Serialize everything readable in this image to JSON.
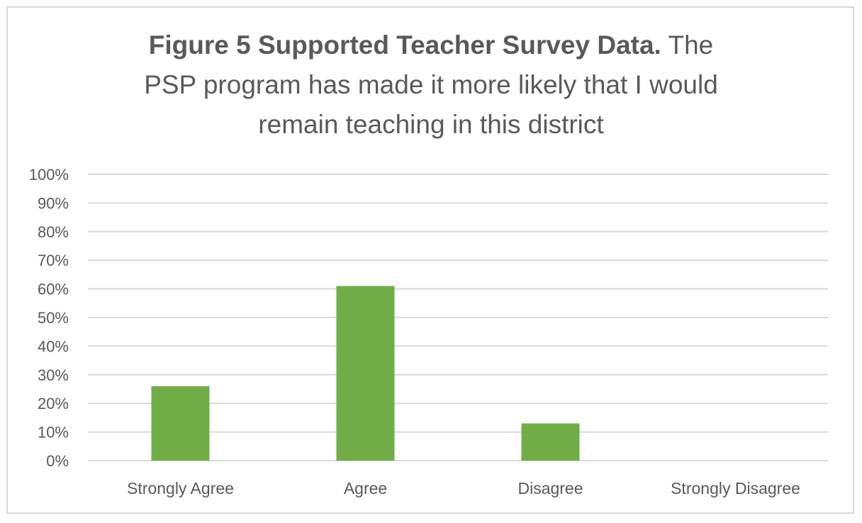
{
  "chart_data": {
    "type": "bar",
    "title_bold": "Figure 5 Supported Teacher Survey Data.",
    "title_line1_rest": "The",
    "title_line2": "PSP program has made it more likely that I would",
    "title_line3": "remain teaching in this district",
    "xlabel": "",
    "ylabel": "",
    "categories": [
      "Strongly Agree",
      "Agree",
      "Disagree",
      "Strongly Disagree"
    ],
    "values": [
      26,
      61,
      13,
      0
    ],
    "ylim": [
      0,
      100
    ],
    "yticks": [
      0,
      10,
      20,
      30,
      40,
      50,
      60,
      70,
      80,
      90,
      100
    ],
    "ytick_labels": [
      "0%",
      "10%",
      "20%",
      "30%",
      "40%",
      "50%",
      "60%",
      "70%",
      "80%",
      "90%",
      "100%"
    ],
    "grid": true,
    "legend": "none",
    "colors": {
      "bar": "#70ad47",
      "grid": "#d9d9d9",
      "text": "#595959",
      "border": "#d9d9d9"
    }
  }
}
